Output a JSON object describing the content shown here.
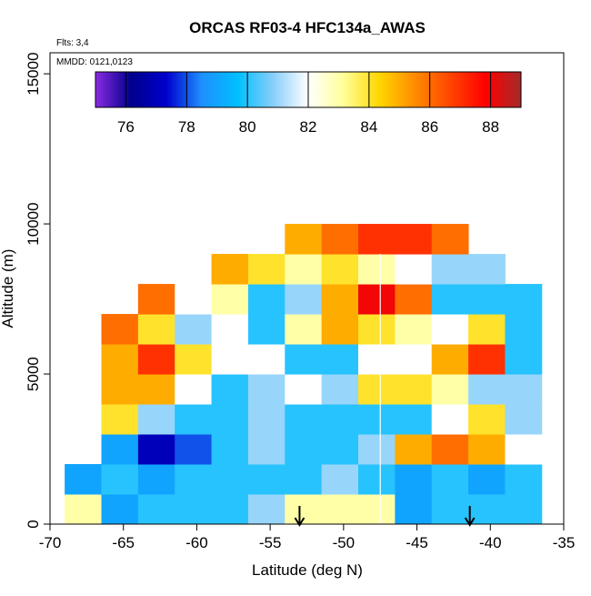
{
  "chart_data": {
    "type": "heatmap",
    "title": "ORCAS RF03-4 HFC134a_AWAS",
    "annotations": [
      "Flts: 3,4",
      "MMDD: 0121,0123"
    ],
    "x_label": "Latitude (deg N)",
    "y_label": "Altitude (m)",
    "xlim": [
      -70,
      -35
    ],
    "xticks": [
      -70,
      -65,
      -60,
      -55,
      -50,
      -45,
      -40,
      -35
    ],
    "ylim": [
      0,
      15700
    ],
    "yticks": [
      0,
      5000,
      10000,
      15000
    ],
    "x_edges": [
      -69,
      -66.5,
      -64,
      -61.5,
      -59,
      -56.5,
      -54,
      -51.5,
      -49,
      -46.5,
      -44,
      -41.5,
      -39,
      -36.5
    ],
    "y_edges": [
      0,
      1000,
      2000,
      3000,
      4000,
      5000,
      6000,
      7000,
      8000,
      9000,
      10000
    ],
    "z": [
      [
        83,
        79,
        80,
        80,
        80,
        81,
        83,
        83,
        83,
        79,
        80,
        80,
        80
      ],
      [
        79,
        80,
        79,
        80,
        80,
        80,
        80,
        81,
        80,
        79,
        80,
        79,
        80
      ],
      [
        null,
        79,
        77,
        78,
        80,
        81,
        80,
        80,
        81,
        85,
        86,
        85,
        82
      ],
      [
        null,
        84,
        81,
        80,
        80,
        81,
        80,
        80,
        80,
        80,
        82,
        84,
        81
      ],
      [
        null,
        85,
        85,
        82,
        80,
        81,
        82,
        81,
        84,
        84,
        83,
        81,
        81
      ],
      [
        null,
        85,
        87,
        84,
        82,
        82,
        80,
        80,
        82,
        82,
        85,
        87,
        80
      ],
      [
        null,
        86,
        84,
        81,
        82,
        80,
        83,
        85,
        84,
        83,
        82,
        84,
        80
      ],
      [
        null,
        null,
        86,
        82,
        83,
        80,
        81,
        85,
        88,
        86,
        80,
        80,
        80
      ],
      [
        null,
        null,
        null,
        null,
        85,
        84,
        83,
        84,
        83,
        82,
        81,
        81,
        null
      ],
      [
        null,
        null,
        null,
        null,
        null,
        null,
        85,
        86,
        87,
        87,
        86,
        null,
        null
      ]
    ],
    "zlim": [
      75,
      89
    ],
    "zticks": [
      76,
      78,
      80,
      82,
      84,
      86,
      88
    ],
    "colorscale": [
      "#8a2be2",
      "#00008b",
      "#0000cd",
      "#1e90ff",
      "#00bfff",
      "#87cefa",
      "#ffffff",
      "#ffff99",
      "#ffd700",
      "#ff8c00",
      "#ff4500",
      "#ff0000",
      "#a52a2a"
    ],
    "vline_x": -47.5,
    "arrows_x": [
      -53,
      -41.4
    ]
  }
}
